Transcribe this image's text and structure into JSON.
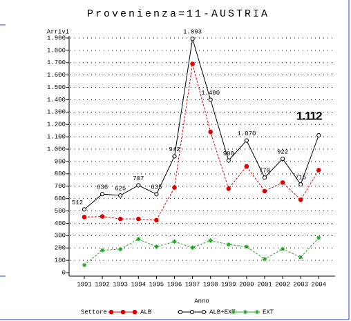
{
  "chart_data": {
    "type": "line",
    "title": "Provenienza=11-AUSTRIA",
    "y_label": "Arrivi",
    "x_label": "Anno",
    "legend_title": "Settore",
    "categories": [
      "1991",
      "1992",
      "1993",
      "1994",
      "1995",
      "1996",
      "1997",
      "1998",
      "1999",
      "2000",
      "2001",
      "2002",
      "2003",
      "2004"
    ],
    "series": [
      {
        "name": "ALB",
        "color": "#e00000",
        "marker": "filled-circle",
        "values": [
          450,
          455,
          435,
          435,
          425,
          690,
          1690,
          1140,
          680,
          860,
          660,
          730,
          590,
          830
        ]
      },
      {
        "name": "ALB+EXT",
        "color": "#000000",
        "marker": "open-circle",
        "values": [
          512,
          636,
          625,
          707,
          635,
          942,
          1893,
          1400,
          908,
          1070,
          770,
          922,
          715,
          1112
        ],
        "value_labels": [
          "512",
          "636",
          "625",
          "707",
          "635",
          "942",
          "1.893",
          "1.400",
          "908",
          "1.070",
          "770",
          "922",
          "715",
          "1.112"
        ]
      },
      {
        "name": "EXT",
        "color": "#20a020",
        "marker": "star",
        "values": [
          62,
          181,
          190,
          272,
          210,
          252,
          203,
          260,
          228,
          210,
          110,
          192,
          125,
          282
        ]
      }
    ],
    "ylim": [
      0,
      1900
    ],
    "yticks": [
      0,
      100,
      200,
      300,
      400,
      500,
      600,
      700,
      800,
      900,
      {
        "value": 1000,
        "label": "1.000"
      },
      {
        "value": 1100,
        "label": "1.100"
      },
      {
        "value": 1200,
        "label": "1.200"
      },
      {
        "value": 1300,
        "label": "1.300"
      },
      {
        "value": 1400,
        "label": "1.400"
      },
      {
        "value": 1500,
        "label": "1.500"
      },
      {
        "value": 1600,
        "label": "1.600"
      },
      {
        "value": 1700,
        "label": "1.700"
      },
      {
        "value": 1800,
        "label": "1.800"
      },
      {
        "value": 1900,
        "label": "1.900"
      }
    ],
    "grid": true
  }
}
